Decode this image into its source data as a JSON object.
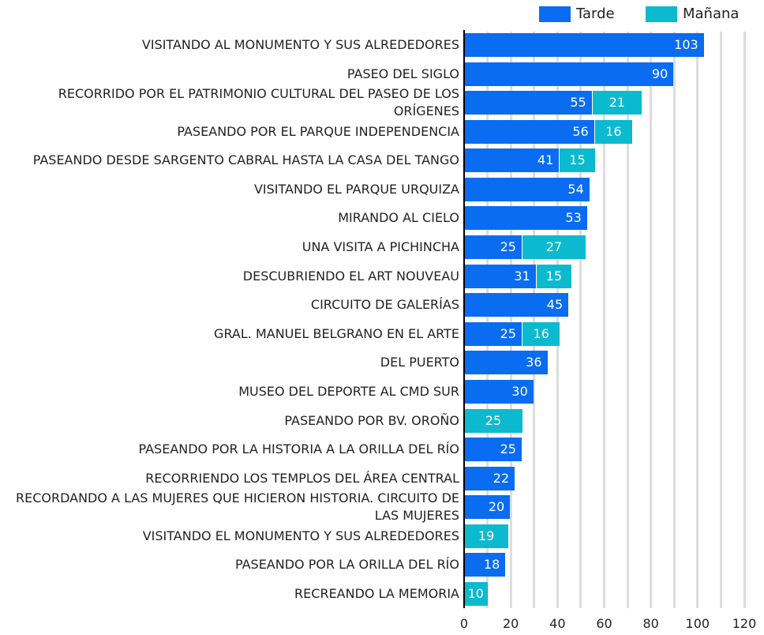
{
  "chart_data": {
    "type": "stacked-barh",
    "categories": [
      "VISITANDO AL MONUMENTO Y SUS ALREDEDORES",
      "PASEO DEL SIGLO",
      "RECORRIDO POR EL PATRIMONIO CULTURAL DEL PASEO DE LOS ORÍGENES",
      "PASEANDO POR EL PARQUE INDEPENDENCIA",
      "PASEANDO DESDE SARGENTO CABRAL HASTA LA CASA DEL TANGO",
      "VISITANDO EL PARQUE URQUIZA",
      "MIRANDO AL CIELO",
      "UNA VISITA A PICHINCHA",
      "DESCUBRIENDO EL ART NOUVEAU",
      "CIRCUITO DE GALERÍAS",
      "GRAL. MANUEL BELGRANO EN EL ARTE",
      "DEL PUERTO",
      "MUSEO DEL DEPORTE AL CMD SUR",
      "PASEANDO POR BV. OROÑO",
      "PASEANDO POR LA HISTORIA A LA ORILLA DEL RÍO",
      "RECORRIENDO LOS TEMPLOS DEL ÁREA CENTRAL",
      "RECORDANDO A LAS MUJERES QUE HICIERON HISTORIA. CIRCUITO DE LAS MUJERES",
      "VISITANDO EL MONUMENTO Y SUS ALREDEDORES",
      "PASEANDO POR LA ORILLA DEL RÍO",
      "RECREANDO LA MEMORIA"
    ],
    "series": [
      {
        "name": "Tarde",
        "color": "#0a6cf0",
        "values": [
          103,
          90,
          55,
          56,
          41,
          54,
          53,
          25,
          31,
          45,
          25,
          36,
          30,
          null,
          25,
          22,
          20,
          null,
          18,
          null
        ]
      },
      {
        "name": "Mañana",
        "color": "#0bbacf",
        "values": [
          null,
          null,
          21,
          16,
          15,
          null,
          null,
          27,
          15,
          null,
          16,
          null,
          null,
          25,
          null,
          null,
          null,
          19,
          null,
          10
        ]
      }
    ],
    "xlim": [
      0,
      120
    ],
    "xticks": [
      0,
      20,
      40,
      60,
      80,
      100,
      120
    ],
    "minor_xticks": [
      10,
      30,
      50,
      70,
      90,
      110
    ],
    "grid": true,
    "legend": "top-right"
  }
}
